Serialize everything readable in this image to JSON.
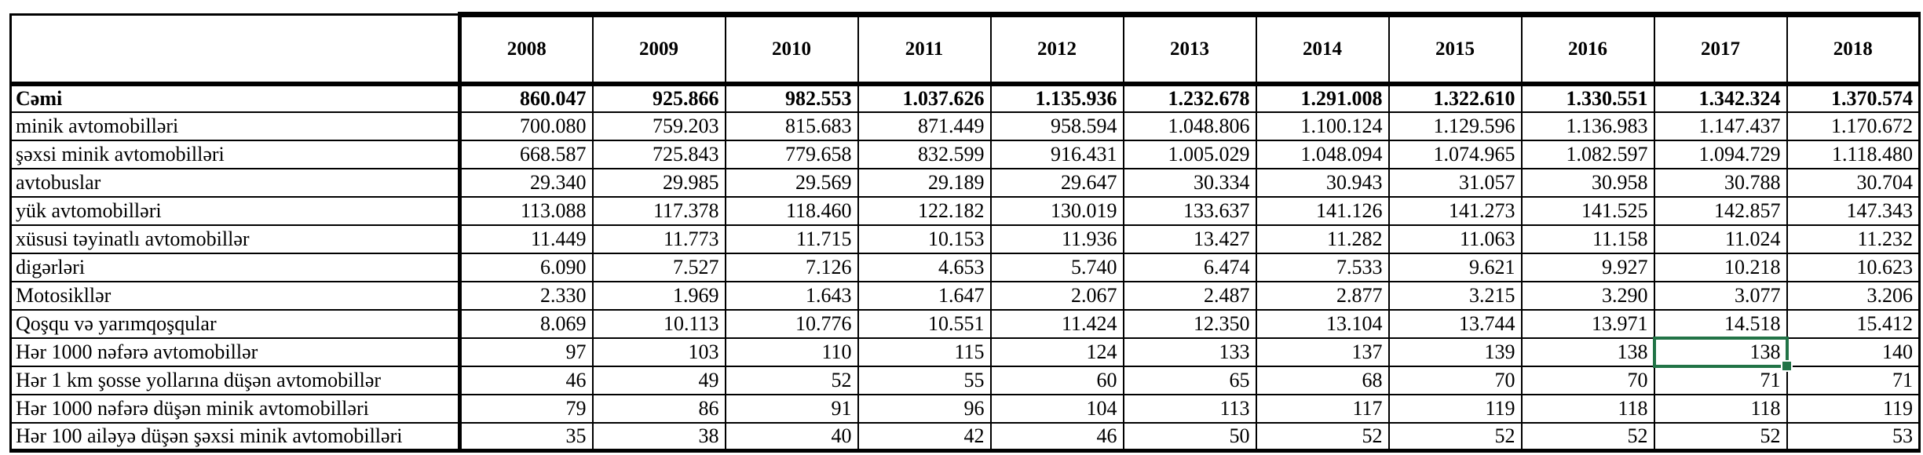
{
  "colors": {
    "selection": "#217346",
    "border": "#000000",
    "background": "#ffffff"
  },
  "table": {
    "corner_label": "",
    "columns": [
      "2008",
      "2009",
      "2010",
      "2011",
      "2012",
      "2013",
      "2014",
      "2015",
      "2016",
      "2017",
      "2018"
    ],
    "rows": [
      {
        "label": "Cəmi",
        "bold": true,
        "values": [
          "860.047",
          "925.866",
          "982.553",
          "1.037.626",
          "1.135.936",
          "1.232.678",
          "1.291.008",
          "1.322.610",
          "1.330.551",
          "1.342.324",
          "1.370.574"
        ]
      },
      {
        "label": "minik avtomobilləri",
        "values": [
          "700.080",
          "759.203",
          "815.683",
          "871.449",
          "958.594",
          "1.048.806",
          "1.100.124",
          "1.129.596",
          "1.136.983",
          "1.147.437",
          "1.170.672"
        ]
      },
      {
        "label": "şəxsi minik avtomobilləri",
        "values": [
          "668.587",
          "725.843",
          "779.658",
          "832.599",
          "916.431",
          "1.005.029",
          "1.048.094",
          "1.074.965",
          "1.082.597",
          "1.094.729",
          "1.118.480"
        ]
      },
      {
        "label": "avtobuslar",
        "values": [
          "29.340",
          "29.985",
          "29.569",
          "29.189",
          "29.647",
          "30.334",
          "30.943",
          "31.057",
          "30.958",
          "30.788",
          "30.704"
        ]
      },
      {
        "label": "yük avtomobilləri",
        "values": [
          "113.088",
          "117.378",
          "118.460",
          "122.182",
          "130.019",
          "133.637",
          "141.126",
          "141.273",
          "141.525",
          "142.857",
          "147.343"
        ]
      },
      {
        "label": "xüsusi təyinatlı avtomobillər",
        "values": [
          "11.449",
          "11.773",
          "11.715",
          "10.153",
          "11.936",
          "13.427",
          "11.282",
          "11.063",
          "11.158",
          "11.024",
          "11.232"
        ]
      },
      {
        "label": "digərləri",
        "values": [
          "6.090",
          "7.527",
          "7.126",
          "4.653",
          "5.740",
          "6.474",
          "7.533",
          "9.621",
          "9.927",
          "10.218",
          "10.623"
        ]
      },
      {
        "label": "Motosikllər",
        "values": [
          "2.330",
          "1.969",
          "1.643",
          "1.647",
          "2.067",
          "2.487",
          "2.877",
          "3.215",
          "3.290",
          "3.077",
          "3.206"
        ]
      },
      {
        "label": "Qoşqu və yarımqoşqular",
        "values": [
          "8.069",
          "10.113",
          "10.776",
          "10.551",
          "11.424",
          "12.350",
          "13.104",
          "13.744",
          "13.971",
          "14.518",
          "15.412"
        ]
      },
      {
        "label": "Hər 1000 nəfərə avtomobillər",
        "values": [
          "97",
          "103",
          "110",
          "115",
          "124",
          "133",
          "137",
          "139",
          "138",
          "138",
          "140"
        ]
      },
      {
        "label": "Hər 1 km şosse yollarına düşən avtomobillər",
        "values": [
          "46",
          "49",
          "52",
          "55",
          "60",
          "65",
          "68",
          "70",
          "70",
          "71",
          "71"
        ]
      },
      {
        "label": "Hər 1000 nəfərə düşən minik avtomobilləri",
        "values": [
          "79",
          "86",
          "91",
          "96",
          "104",
          "113",
          "117",
          "119",
          "118",
          "118",
          "119"
        ]
      },
      {
        "label": "Hər 100 ailəyə düşən şəxsi minik avtomobilləri",
        "values": [
          "35",
          "38",
          "40",
          "42",
          "46",
          "50",
          "52",
          "52",
          "52",
          "52",
          "53"
        ]
      }
    ],
    "selected_cell": {
      "row_label": "Hər 1000 nəfərə avtomobillər",
      "column": "2017",
      "value": "138"
    }
  }
}
